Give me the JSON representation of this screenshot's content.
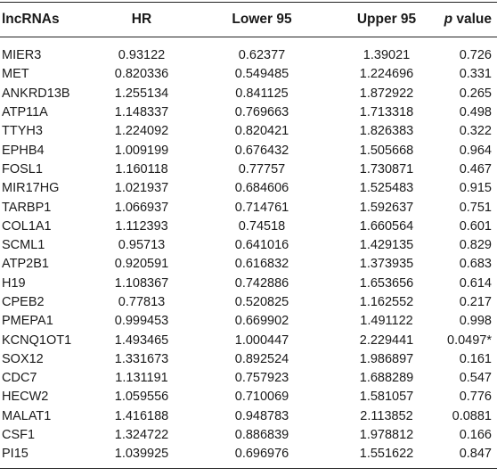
{
  "header": {
    "col0": "lncRNAs",
    "col1": "HR",
    "col2": "Lower 95",
    "col3": "Upper 95",
    "col4_p": "p",
    "col4_rest": " value"
  },
  "rows": [
    {
      "name": "MIER3",
      "hr": "0.93122",
      "lower": "0.62377",
      "upper": "1.39021",
      "p": "0.726"
    },
    {
      "name": "MET",
      "hr": "0.820336",
      "lower": "0.549485",
      "upper": "1.224696",
      "p": "0.331"
    },
    {
      "name": "ANKRD13B",
      "hr": "1.255134",
      "lower": "0.841125",
      "upper": "1.872922",
      "p": "0.265"
    },
    {
      "name": "ATP11A",
      "hr": "1.148337",
      "lower": "0.769663",
      "upper": "1.713318",
      "p": "0.498"
    },
    {
      "name": "TTYH3",
      "hr": "1.224092",
      "lower": "0.820421",
      "upper": "1.826383",
      "p": "0.322"
    },
    {
      "name": "EPHB4",
      "hr": "1.009199",
      "lower": "0.676432",
      "upper": "1.505668",
      "p": "0.964"
    },
    {
      "name": "FOSL1",
      "hr": "1.160118",
      "lower": "0.77757",
      "upper": "1.730871",
      "p": "0.467"
    },
    {
      "name": "MIR17HG",
      "hr": "1.021937",
      "lower": "0.684606",
      "upper": "1.525483",
      "p": "0.915"
    },
    {
      "name": "TARBP1",
      "hr": "1.066937",
      "lower": "0.714761",
      "upper": "1.592637",
      "p": "0.751"
    },
    {
      "name": "COL1A1",
      "hr": "1.112393",
      "lower": "0.74518",
      "upper": "1.660564",
      "p": "0.601"
    },
    {
      "name": "SCML1",
      "hr": "0.95713",
      "lower": "0.641016",
      "upper": "1.429135",
      "p": "0.829"
    },
    {
      "name": "ATP2B1",
      "hr": "0.920591",
      "lower": "0.616832",
      "upper": "1.373935",
      "p": "0.683"
    },
    {
      "name": "H19",
      "hr": "1.108367",
      "lower": "0.742886",
      "upper": "1.653656",
      "p": "0.614"
    },
    {
      "name": "CPEB2",
      "hr": "0.77813",
      "lower": "0.520825",
      "upper": "1.162552",
      "p": "0.217"
    },
    {
      "name": "PMEPA1",
      "hr": "0.999453",
      "lower": "0.669902",
      "upper": "1.491122",
      "p": "0.998"
    },
    {
      "name": "KCNQ1OT1",
      "hr": "1.493465",
      "lower": "1.000447",
      "upper": "2.229441",
      "p": "0.0497*"
    },
    {
      "name": "SOX12",
      "hr": "1.331673",
      "lower": "0.892524",
      "upper": "1.986897",
      "p": "0.161"
    },
    {
      "name": "CDC7",
      "hr": "1.131191",
      "lower": "0.757923",
      "upper": "1.688289",
      "p": "0.547"
    },
    {
      "name": "HECW2",
      "hr": "1.059556",
      "lower": "0.710069",
      "upper": "1.581057",
      "p": "0.776"
    },
    {
      "name": "MALAT1",
      "hr": "1.416188",
      "lower": "0.948783",
      "upper": "2.113852",
      "p": "0.0881"
    },
    {
      "name": "CSF1",
      "hr": "1.324722",
      "lower": "0.886839",
      "upper": "1.978812",
      "p": "0.166"
    },
    {
      "name": "PI15",
      "hr": "1.039925",
      "lower": "0.696976",
      "upper": "1.551622",
      "p": "0.847"
    }
  ]
}
